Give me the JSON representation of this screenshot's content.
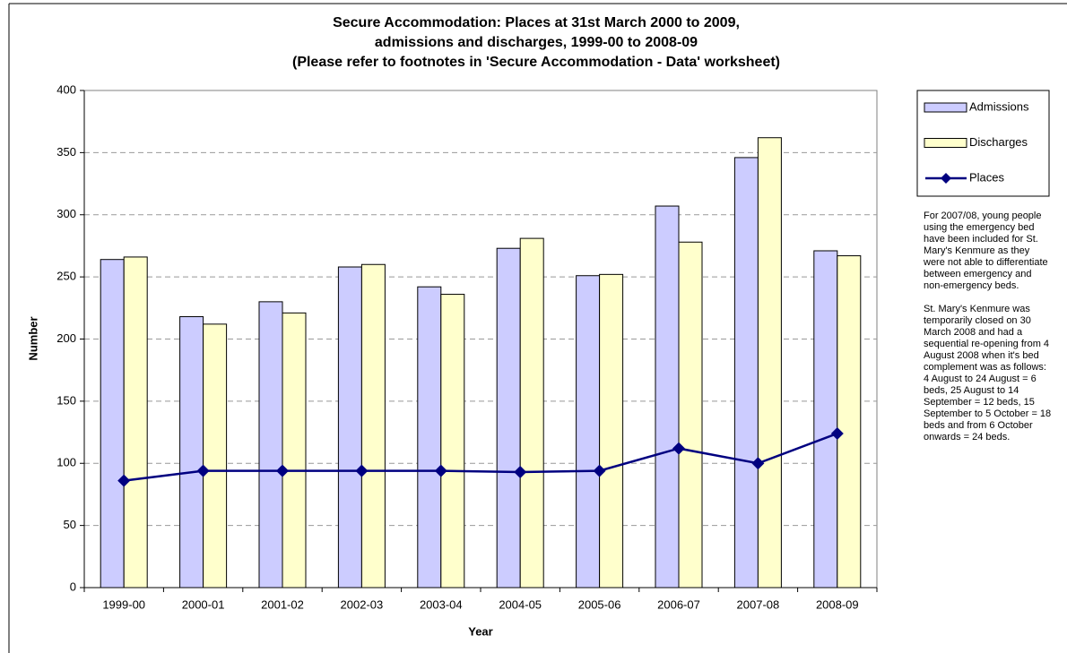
{
  "chart_data": {
    "type": "bar",
    "title": [
      "Secure Accommodation: Places at 31st March 2000 to 2009,",
      "admissions and discharges, 1999-00 to 2008-09",
      "(Please refer to footnotes in 'Secure Accommodation - Data' worksheet)"
    ],
    "x_label": "Year",
    "y_label": "Number",
    "categories": [
      "1999-00",
      "2000-01",
      "2001-02",
      "2002-03",
      "2003-04",
      "2004-05",
      "2005-06",
      "2006-07",
      "2007-08",
      "2008-09"
    ],
    "series": [
      {
        "name": "Admissions",
        "type": "bar",
        "color": "#ccccff",
        "values": [
          264,
          218,
          230,
          258,
          242,
          273,
          251,
          307,
          346,
          271
        ]
      },
      {
        "name": "Discharges",
        "type": "bar",
        "color": "#ffffcc",
        "values": [
          266,
          212,
          221,
          260,
          236,
          281,
          252,
          278,
          362,
          267
        ]
      },
      {
        "name": "Places",
        "type": "line",
        "color": "#000080",
        "values": [
          86,
          94,
          94,
          94,
          94,
          93,
          94,
          112,
          100,
          124
        ]
      }
    ],
    "ylim": [
      0,
      400
    ],
    "yticks": [
      0,
      50,
      100,
      150,
      200,
      250,
      300,
      350,
      400
    ],
    "grid": true,
    "legend": "right",
    "annotations": [
      "For 2007/08, young people using the emergency bed have been included for St. Mary's  Kenmure as they were not able to differentiate between emergency and non-emergency beds.",
      "St. Mary's Kenmure was temporarily closed on 30 March 2008 and had a sequential re-opening from 4 August 2008 when it's bed complement was as follows:  4 August to 24 August = 6 beds, 25 August to 14 September = 12 beds, 15 September to 5 October = 18 beds and from 6 October onwards = 24 beds."
    ]
  }
}
